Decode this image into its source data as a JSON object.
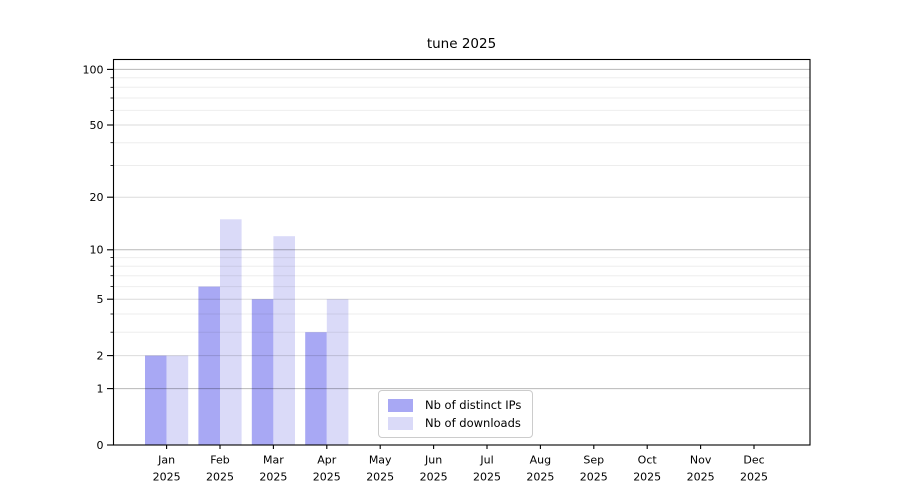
{
  "chart_data": {
    "type": "bar",
    "title": "tune 2025",
    "categories": [
      "Jan",
      "Feb",
      "Mar",
      "Apr",
      "May",
      "Jun",
      "Jul",
      "Aug",
      "Sep",
      "Oct",
      "Nov",
      "Dec"
    ],
    "year_label": "2025",
    "series": [
      {
        "name": "Nb of distinct IPs",
        "color": "#a8a8f4",
        "values": [
          2,
          6,
          5,
          3,
          0,
          0,
          0,
          0,
          0,
          0,
          0,
          0
        ]
      },
      {
        "name": "Nb of downloads",
        "color": "#dadaf8",
        "values": [
          2,
          15,
          12,
          5,
          0,
          0,
          0,
          0,
          0,
          0,
          0,
          0
        ]
      }
    ],
    "yscale": "log1p",
    "ylim": [
      0,
      113
    ],
    "yticks": [
      0,
      1,
      2,
      5,
      10,
      20,
      50,
      100
    ],
    "grid_major": [
      1,
      10,
      100
    ],
    "grid_mid": [
      2,
      5,
      20,
      50
    ],
    "grid_minor": [
      3,
      4,
      6,
      7,
      8,
      9,
      30,
      40,
      60,
      70,
      80,
      90
    ],
    "legend_position": "lower center-right inside plot",
    "grid": "on",
    "axis_color": "#000000",
    "text_color": "#000000"
  }
}
